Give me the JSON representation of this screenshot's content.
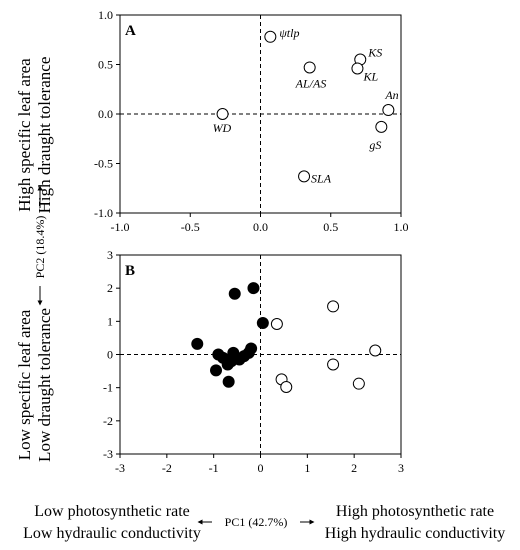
{
  "chart_data": [
    {
      "panel": "A",
      "type": "scatter",
      "xlim": [
        -1.0,
        1.0
      ],
      "ylim": [
        -1.0,
        1.0
      ],
      "x_ticks": [
        "-1.0",
        "-0.5",
        "0.0",
        "0.5",
        "1.0"
      ],
      "y_ticks": [
        "-1.0",
        "-0.5",
        "0.0",
        "0.5",
        "1.0"
      ],
      "reference_lines": {
        "x": 0,
        "y": 0,
        "style": "dashed"
      },
      "points": [
        {
          "label": "ψtlp",
          "x": 0.07,
          "y": 0.78
        },
        {
          "label": "KS",
          "x": 0.71,
          "y": 0.55
        },
        {
          "label": "AL/AS",
          "x": 0.35,
          "y": 0.47
        },
        {
          "label": "KL",
          "x": 0.69,
          "y": 0.46
        },
        {
          "label": "An",
          "x": 0.91,
          "y": 0.04
        },
        {
          "label": "WD",
          "x": -0.27,
          "y": 0.0
        },
        {
          "label": "gS",
          "x": 0.86,
          "y": -0.13
        },
        {
          "label": "SLA",
          "x": 0.31,
          "y": -0.63
        }
      ]
    },
    {
      "panel": "B",
      "type": "scatter",
      "xlim": [
        -3,
        3
      ],
      "ylim": [
        -3,
        3
      ],
      "x_ticks": [
        "-3",
        "-2",
        "-1",
        "0",
        "1",
        "2",
        "3"
      ],
      "y_ticks": [
        "-3",
        "-2",
        "-1",
        "0",
        "1",
        "2",
        "3"
      ],
      "reference_lines": {
        "x": 0,
        "y": 0,
        "style": "dashed"
      },
      "series": [
        {
          "marker": "filled",
          "points": [
            {
              "x": -1.35,
              "y": 0.32
            },
            {
              "x": -0.55,
              "y": 1.83
            },
            {
              "x": -0.15,
              "y": 2.0
            },
            {
              "x": 0.05,
              "y": 0.95
            },
            {
              "x": -0.9,
              "y": 0.0
            },
            {
              "x": -0.95,
              "y": -0.48
            },
            {
              "x": -0.8,
              "y": -0.1
            },
            {
              "x": -0.7,
              "y": -0.3
            },
            {
              "x": -0.62,
              "y": -0.2
            },
            {
              "x": -0.58,
              "y": 0.05
            },
            {
              "x": -0.45,
              "y": -0.15
            },
            {
              "x": -0.35,
              "y": -0.05
            },
            {
              "x": -0.25,
              "y": 0.05
            },
            {
              "x": -0.2,
              "y": 0.18
            },
            {
              "x": -0.68,
              "y": -0.82
            }
          ]
        },
        {
          "marker": "open",
          "points": [
            {
              "x": 0.35,
              "y": 0.92
            },
            {
              "x": 1.55,
              "y": 1.45
            },
            {
              "x": 2.45,
              "y": 0.12
            },
            {
              "x": 1.55,
              "y": -0.3
            },
            {
              "x": 0.45,
              "y": -0.75
            },
            {
              "x": 0.55,
              "y": -0.98
            },
            {
              "x": 2.1,
              "y": -0.88
            }
          ]
        }
      ]
    }
  ],
  "axes_text": {
    "y_label": "PC2 (18.4%)",
    "x_label": "PC1 (42.7%)",
    "top_side": [
      "High  specific leaf area",
      "High draught tolerance"
    ],
    "bottom_side": [
      "Low  specific leaf area",
      "Low draught tolerance"
    ],
    "left_bottom": [
      "Low photosynthetic rate",
      "Low hydraulic conductivity"
    ],
    "right_bottom": [
      "High photosynthetic rate",
      "High hydraulic conductivity"
    ]
  }
}
